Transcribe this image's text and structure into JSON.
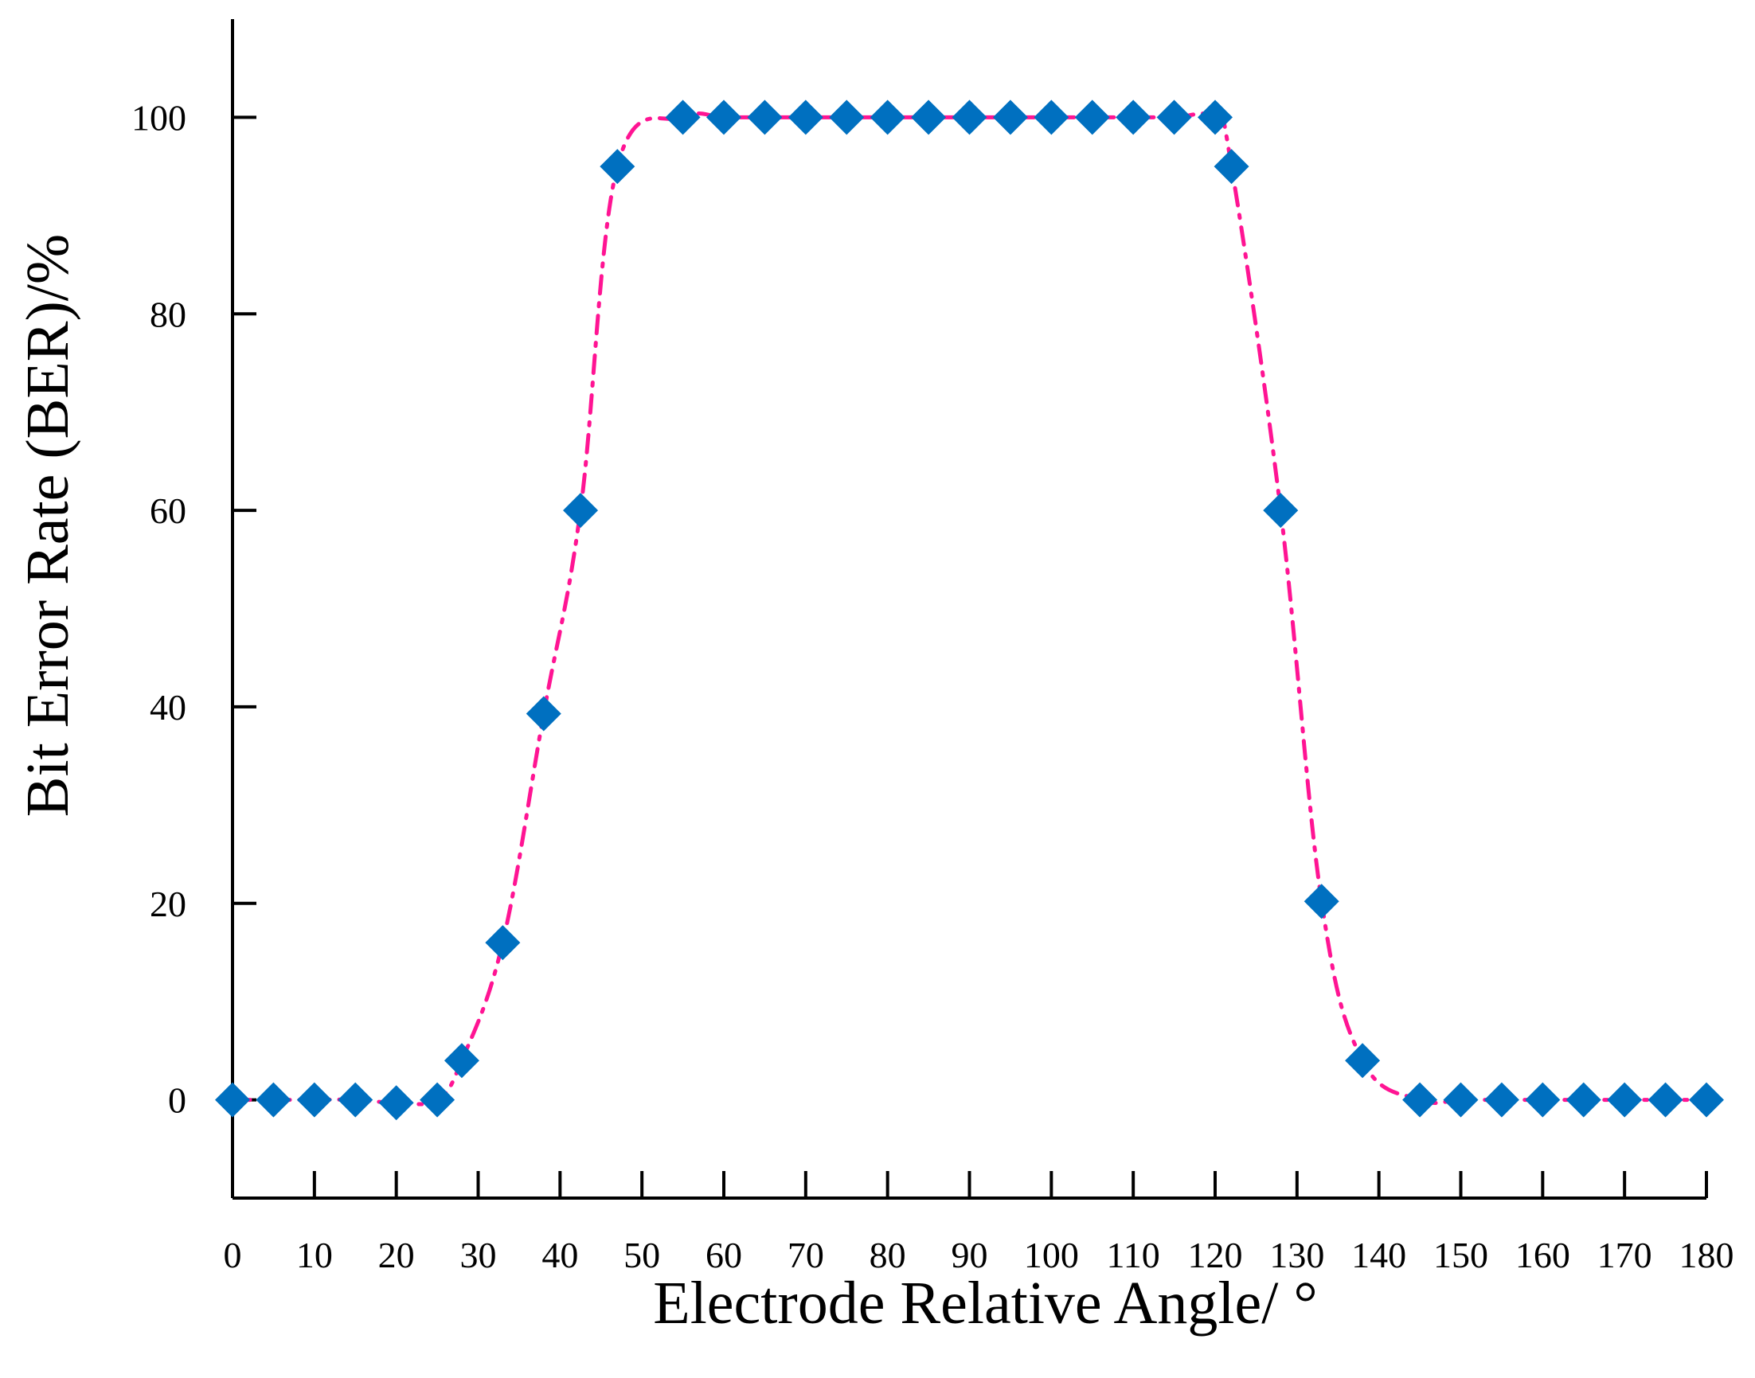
{
  "chart_data": {
    "type": "scatter",
    "title": "",
    "xlabel": "Electrode Relative Angle/ °",
    "ylabel": "Bit Error Rate (BER)/%",
    "xlim": [
      0,
      180
    ],
    "ylim": [
      -10,
      110
    ],
    "xticks": [
      0,
      10,
      20,
      30,
      40,
      50,
      60,
      70,
      80,
      90,
      100,
      110,
      120,
      130,
      140,
      150,
      160,
      170,
      180
    ],
    "yticks": [
      0,
      20,
      40,
      60,
      80,
      100
    ],
    "grid": false,
    "legend": "none",
    "colors": {
      "marker": "#0070C0",
      "line": "#FF1493",
      "axis": "#000000"
    },
    "series": [
      {
        "name": "BER",
        "marker": "diamond",
        "line_style": "dash-dot smoothed",
        "x": [
          0,
          5,
          10,
          15,
          20,
          25,
          28,
          33,
          38,
          42.5,
          47,
          55,
          60,
          65,
          70,
          75,
          80,
          85,
          90,
          95,
          100,
          105,
          110,
          115,
          120,
          122,
          128,
          133,
          138,
          145,
          150,
          155,
          160,
          165,
          170,
          175,
          180
        ],
        "values": [
          0,
          0,
          0,
          0,
          -0.3,
          0,
          4,
          16,
          39.3,
          60,
          95,
          100,
          100,
          100,
          100,
          100,
          100,
          100,
          100,
          100,
          100,
          100,
          100,
          100,
          100,
          95,
          60,
          20.2,
          4,
          0,
          0,
          0,
          0,
          0,
          0,
          0,
          0
        ]
      }
    ]
  }
}
